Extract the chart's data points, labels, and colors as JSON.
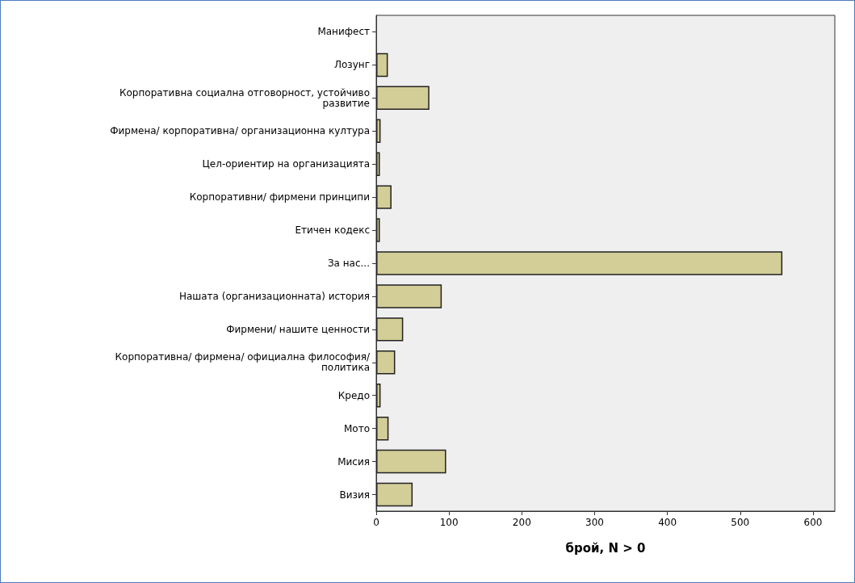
{
  "chart_data": {
    "type": "bar",
    "orientation": "horizontal",
    "xlabel": "брой, N > 0",
    "categories": [
      "Манифест",
      "Лозунг",
      "Корпоративна социална отговорност, устойчиво\nразвитие",
      "Фирмена/ корпоративна/ организационна култура",
      "Цел-ориентир на организацията",
      "Корпоративни/ фирмени принципи",
      "Етичен кодекс",
      "За нас...",
      "Нашата (организационната) история",
      "Фирмени/ нашите ценности",
      "Корпоративна/ фирмена/ официална философия/\nполитика",
      "Кредо",
      "Мото",
      "Мисия",
      "Визия"
    ],
    "values": [
      0,
      16,
      73,
      6,
      5,
      21,
      5,
      558,
      90,
      37,
      26,
      6,
      17,
      96,
      50
    ],
    "color": "#d3cd98",
    "xlim": [
      0,
      630
    ],
    "xticks": [
      0,
      100,
      200,
      300,
      400,
      500,
      600
    ],
    "grid": false
  }
}
